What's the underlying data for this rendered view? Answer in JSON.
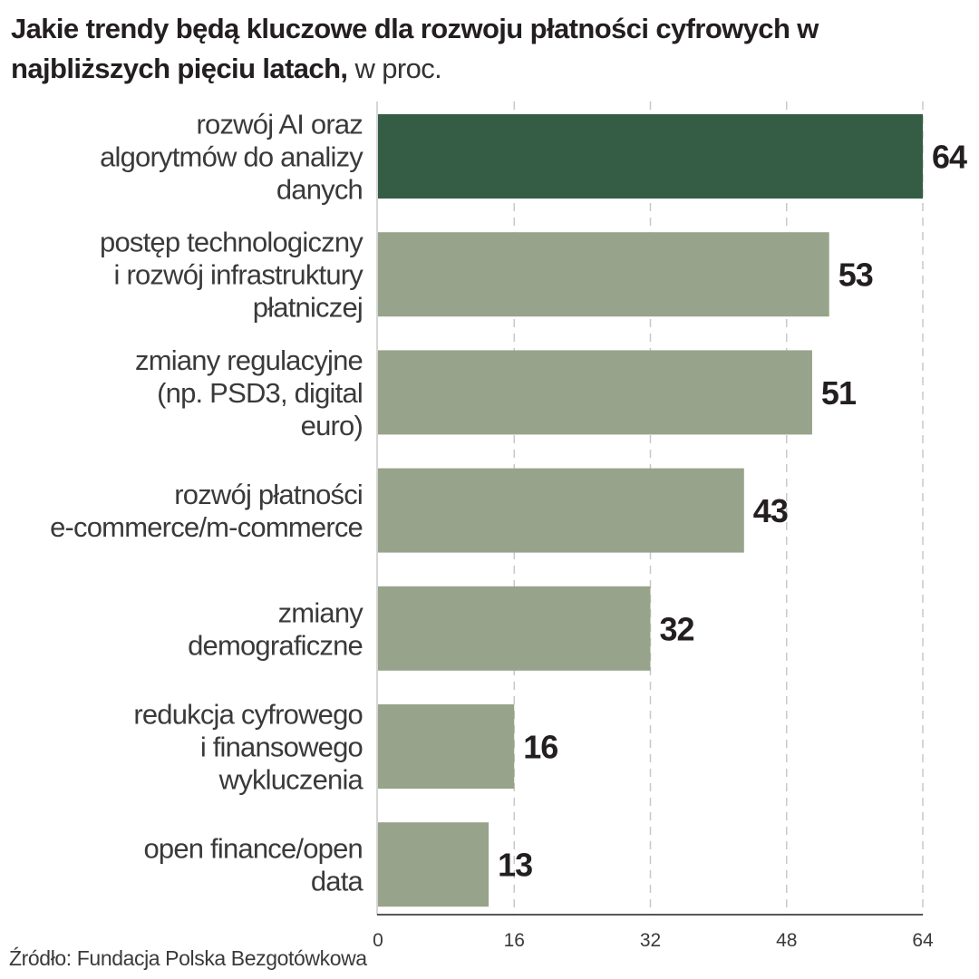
{
  "header": {
    "title_bold": "Jakie trendy będą kluczowe dla rozwoju płatności cyfrowych w najbliższych pięciu latach,",
    "title_unit": "w proc."
  },
  "source": "Źródło: Fundacja Polska Bezgotówkowa",
  "colors": {
    "highlight": "#355c45",
    "bar": "#97a38a",
    "grid": "#c8c8c8",
    "axis": "#231f20"
  },
  "chart_data": {
    "type": "bar",
    "orientation": "horizontal",
    "categories": [
      [
        "rozwój AI oraz",
        "algorytmów do analizy",
        "danych"
      ],
      [
        "postęp technologiczny",
        "i rozwój infrastruktury",
        "płatniczej"
      ],
      [
        "zmiany regulacyjne",
        "(np. PSD3, digital",
        "euro)"
      ],
      [
        "rozwój płatności",
        "e-commerce/m-commerce"
      ],
      [
        "zmiany",
        "demograficzne"
      ],
      [
        "redukcja cyfrowego",
        "i finansowego",
        "wykluczenia"
      ],
      [
        "open finance/open",
        "data"
      ]
    ],
    "values": [
      64,
      53,
      51,
      43,
      32,
      16,
      13
    ],
    "highlight_index": 0,
    "xlim": [
      0,
      64
    ],
    "xticks": [
      0,
      16,
      32,
      48,
      64
    ],
    "grid": true
  }
}
